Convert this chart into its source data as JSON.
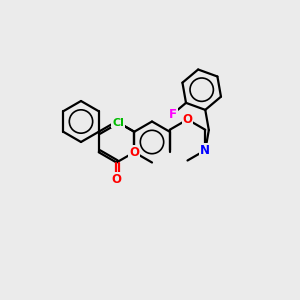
{
  "background_color": "#EBEBEB",
  "bond_color": "#000000",
  "atom_colors": {
    "O": "#FF0000",
    "N": "#0000FF",
    "Cl": "#00BB00",
    "F": "#FF00FF"
  },
  "figsize": [
    3.0,
    3.0
  ],
  "dpi": 100,
  "lw": 1.6,
  "r_arom": 0.57
}
